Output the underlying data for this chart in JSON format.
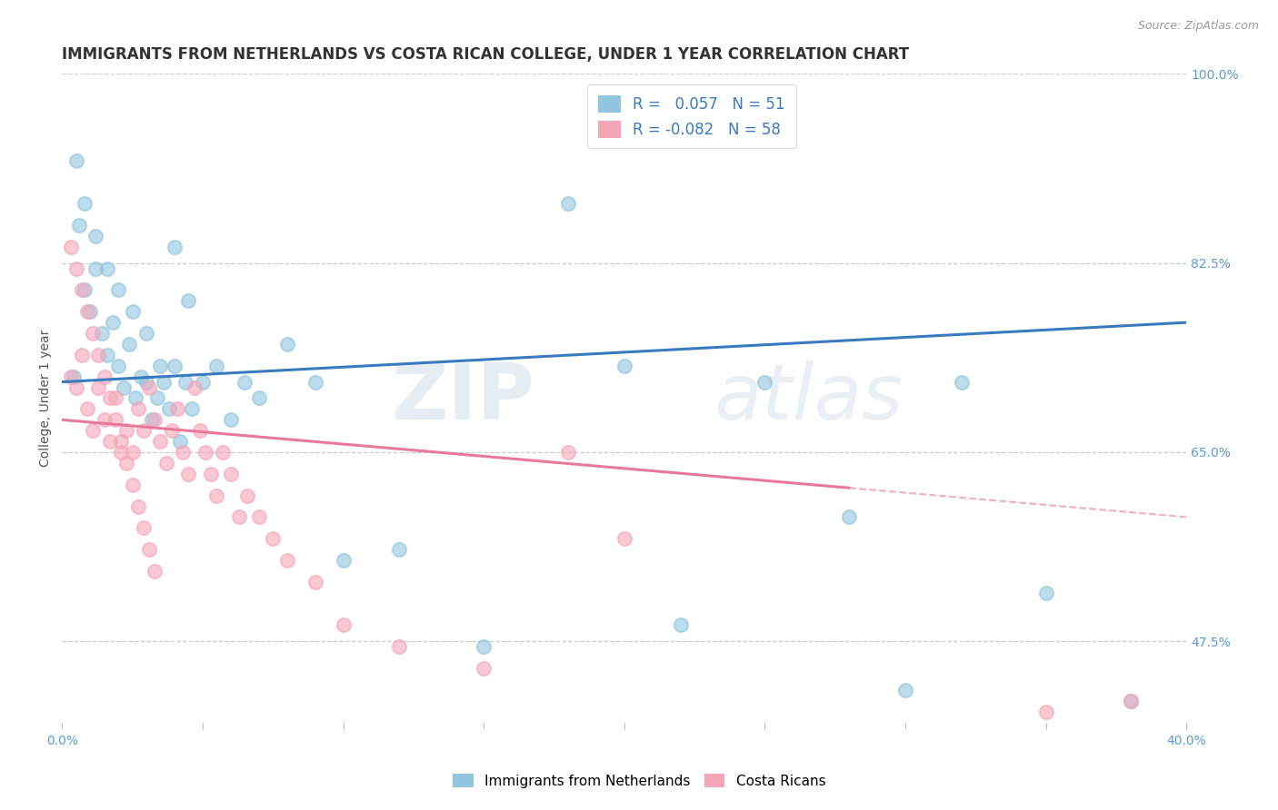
{
  "title": "IMMIGRANTS FROM NETHERLANDS VS COSTA RICAN COLLEGE, UNDER 1 YEAR CORRELATION CHART",
  "source": "Source: ZipAtlas.com",
  "ylabel": "College, Under 1 year",
  "xlim": [
    0.0,
    0.4
  ],
  "ylim": [
    0.4,
    1.0
  ],
  "xticks": [
    0.0,
    0.05,
    0.1,
    0.15,
    0.2,
    0.25,
    0.3,
    0.35,
    0.4
  ],
  "yticks_right": [
    0.475,
    0.65,
    0.825,
    1.0
  ],
  "ytick_labels_right": [
    "47.5%",
    "65.0%",
    "82.5%",
    "100.0%"
  ],
  "blue_R": "0.057",
  "blue_N": "51",
  "pink_R": "-0.082",
  "pink_N": "58",
  "blue_color": "#92c5de",
  "pink_color": "#f4a6b8",
  "blue_line_color": "#3a7bbf",
  "pink_line_color": "#e8799a",
  "legend_label_blue": "Immigrants from Netherlands",
  "legend_label_pink": "Costa Ricans",
  "watermark_zip": "ZIP",
  "watermark_atlas": "atlas",
  "blue_scatter_x": [
    0.004,
    0.006,
    0.008,
    0.01,
    0.012,
    0.014,
    0.016,
    0.018,
    0.02,
    0.022,
    0.024,
    0.026,
    0.028,
    0.03,
    0.032,
    0.034,
    0.036,
    0.038,
    0.04,
    0.042,
    0.044,
    0.046,
    0.05,
    0.055,
    0.06,
    0.065,
    0.07,
    0.08,
    0.09,
    0.1,
    0.12,
    0.15,
    0.18,
    0.2,
    0.22,
    0.25,
    0.28,
    0.3,
    0.32,
    0.35,
    0.005,
    0.008,
    0.012,
    0.016,
    0.02,
    0.025,
    0.03,
    0.035,
    0.04,
    0.045,
    0.38
  ],
  "blue_scatter_y": [
    0.72,
    0.86,
    0.8,
    0.78,
    0.82,
    0.76,
    0.74,
    0.77,
    0.73,
    0.71,
    0.75,
    0.7,
    0.72,
    0.715,
    0.68,
    0.7,
    0.715,
    0.69,
    0.73,
    0.66,
    0.715,
    0.69,
    0.715,
    0.73,
    0.68,
    0.715,
    0.7,
    0.75,
    0.715,
    0.55,
    0.56,
    0.47,
    0.88,
    0.73,
    0.49,
    0.715,
    0.59,
    0.43,
    0.715,
    0.52,
    0.92,
    0.88,
    0.85,
    0.82,
    0.8,
    0.78,
    0.76,
    0.73,
    0.84,
    0.79,
    0.42
  ],
  "pink_scatter_x": [
    0.003,
    0.005,
    0.007,
    0.009,
    0.011,
    0.013,
    0.015,
    0.017,
    0.019,
    0.021,
    0.023,
    0.025,
    0.027,
    0.029,
    0.031,
    0.033,
    0.035,
    0.037,
    0.039,
    0.041,
    0.043,
    0.045,
    0.047,
    0.049,
    0.051,
    0.053,
    0.055,
    0.057,
    0.06,
    0.063,
    0.066,
    0.07,
    0.075,
    0.08,
    0.09,
    0.1,
    0.12,
    0.15,
    0.003,
    0.005,
    0.007,
    0.009,
    0.011,
    0.013,
    0.015,
    0.017,
    0.019,
    0.021,
    0.023,
    0.025,
    0.027,
    0.029,
    0.031,
    0.033,
    0.18,
    0.2,
    0.35,
    0.38
  ],
  "pink_scatter_y": [
    0.72,
    0.71,
    0.74,
    0.69,
    0.67,
    0.71,
    0.68,
    0.66,
    0.7,
    0.65,
    0.67,
    0.65,
    0.69,
    0.67,
    0.71,
    0.68,
    0.66,
    0.64,
    0.67,
    0.69,
    0.65,
    0.63,
    0.71,
    0.67,
    0.65,
    0.63,
    0.61,
    0.65,
    0.63,
    0.59,
    0.61,
    0.59,
    0.57,
    0.55,
    0.53,
    0.49,
    0.47,
    0.45,
    0.84,
    0.82,
    0.8,
    0.78,
    0.76,
    0.74,
    0.72,
    0.7,
    0.68,
    0.66,
    0.64,
    0.62,
    0.6,
    0.58,
    0.56,
    0.54,
    0.65,
    0.57,
    0.41,
    0.42
  ],
  "blue_trend_x0": 0.0,
  "blue_trend_x1": 0.4,
  "blue_trend_y0": 0.715,
  "blue_trend_y1": 0.77,
  "pink_trend_solid_x0": 0.0,
  "pink_trend_solid_x1": 0.28,
  "pink_trend_y0": 0.68,
  "pink_trend_y1": 0.617,
  "pink_trend_dash_x0": 0.28,
  "pink_trend_dash_x1": 0.4,
  "pink_trend_dash_y0": 0.617,
  "pink_trend_dash_y1": 0.59,
  "bg_color": "#ffffff",
  "grid_color": "#cccccc",
  "title_color": "#333333",
  "axis_color": "#5b9bd5",
  "right_tick_color": "#5b9bd5",
  "title_fontsize": 12,
  "label_fontsize": 10,
  "tick_fontsize": 10,
  "legend_fontsize": 12
}
